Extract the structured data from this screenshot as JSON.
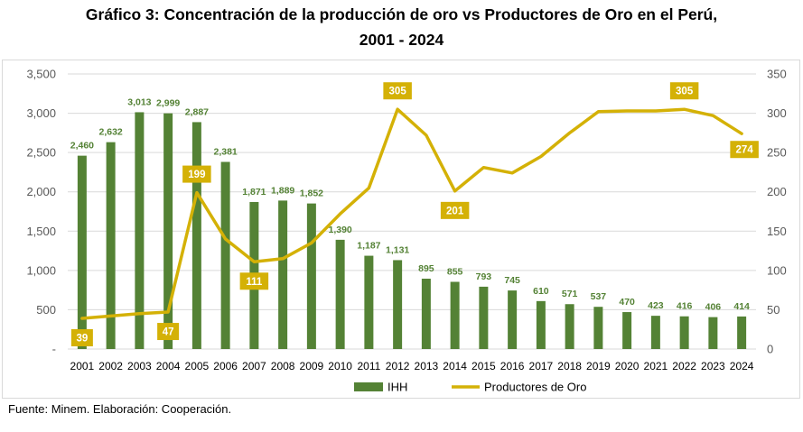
{
  "title_line1": "Gráfico 3: Concentración de la producción de oro vs Productores de Oro en el Perú,",
  "title_line2": "2001 - 2024",
  "source": "Fuente: Minem. Elaboración: Cooperación.",
  "colors": {
    "bar": "#548235",
    "line": "#d4b106",
    "bar_label": "#548235",
    "line_label_bg": "#d4b106",
    "line_label_text": "#ffffff",
    "grid": "#d9d9d9",
    "axis_text": "#595959"
  },
  "chart_data": {
    "type": "bar+line",
    "categories": [
      "2001",
      "2002",
      "2003",
      "2004",
      "2005",
      "2006",
      "2007",
      "2008",
      "2009",
      "2010",
      "2011",
      "2012",
      "2013",
      "2014",
      "2015",
      "2016",
      "2017",
      "2018",
      "2019",
      "2020",
      "2021",
      "2022",
      "2023",
      "2024"
    ],
    "series": [
      {
        "name": "IHH",
        "type": "bar",
        "axis": "left",
        "values": [
          2460,
          2632,
          3013,
          2999,
          2887,
          2381,
          1871,
          1889,
          1852,
          1390,
          1187,
          1131,
          895,
          855,
          793,
          745,
          610,
          571,
          537,
          470,
          423,
          416,
          406,
          414
        ],
        "labels": [
          "2,460",
          "2,632",
          "3,013",
          "2,999",
          "2,887",
          "2,381",
          "1,871",
          "1,889",
          "1,852",
          "1,390",
          "1,187",
          "1,131",
          "895",
          "855",
          "793",
          "745",
          "610",
          "571",
          "537",
          "470",
          "423",
          "416",
          "406",
          "414"
        ]
      },
      {
        "name": "Productores de Oro",
        "type": "line",
        "axis": "right",
        "values": [
          39,
          42,
          45,
          47,
          199,
          140,
          111,
          115,
          135,
          172,
          205,
          305,
          272,
          201,
          231,
          224,
          245,
          275,
          302,
          303,
          303,
          305,
          297,
          274
        ],
        "labeled_points": [
          {
            "index": 0,
            "label": "39"
          },
          {
            "index": 3,
            "label": "47"
          },
          {
            "index": 4,
            "label": "199"
          },
          {
            "index": 6,
            "label": "111"
          },
          {
            "index": 11,
            "label": "305"
          },
          {
            "index": 13,
            "label": "201"
          },
          {
            "index": 21,
            "label": "305"
          },
          {
            "index": 23,
            "label": "274"
          }
        ]
      }
    ],
    "y_left": {
      "min": 0,
      "max": 3500,
      "ticks": [
        "-",
        "500",
        "1,000",
        "1,500",
        "2,000",
        "2,500",
        "3,000",
        "3,500"
      ]
    },
    "y_right": {
      "min": 0,
      "max": 350,
      "ticks": [
        "0",
        "50",
        "100",
        "150",
        "200",
        "250",
        "300",
        "350"
      ]
    },
    "grid": true,
    "legend": {
      "position": "bottom",
      "items": [
        "IHH",
        "Productores de Oro"
      ]
    }
  }
}
